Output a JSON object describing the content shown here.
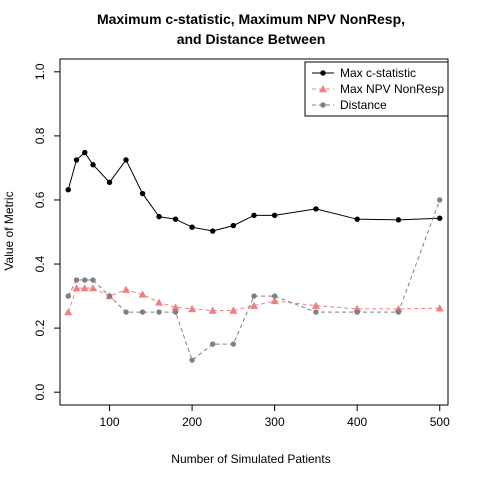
{
  "chart_data": {
    "type": "line",
    "title_lines": [
      "Maximum c-statistic, Maximum NPV NonResp,",
      "and Distance Between"
    ],
    "xlabel": "Number of Simulated Patients",
    "ylabel": "Value of Metric",
    "xlim": [
      40,
      510
    ],
    "ylim": [
      -0.04,
      1.04
    ],
    "x_ticks": [
      100,
      200,
      300,
      400,
      500
    ],
    "x_tick_labels": [
      "100",
      "200",
      "300",
      "400",
      "500"
    ],
    "y_ticks": [
      0.0,
      0.2,
      0.4,
      0.6,
      0.8,
      1.0
    ],
    "y_tick_labels": [
      "0.0",
      "0.2",
      "0.4",
      "0.6",
      "0.8",
      "1.0"
    ],
    "legend_position": "top-right",
    "x": [
      50,
      60,
      70,
      80,
      100,
      120,
      140,
      160,
      180,
      200,
      225,
      250,
      275,
      300,
      350,
      400,
      450,
      500
    ],
    "series": [
      {
        "name": "Max c-statistic",
        "color": "#000000",
        "marker": "circle",
        "dash": "solid",
        "values": [
          0.632,
          0.725,
          0.748,
          0.71,
          0.655,
          0.725,
          0.62,
          0.548,
          0.54,
          0.515,
          0.503,
          0.52,
          0.552,
          0.552,
          0.572,
          0.54,
          0.538,
          0.543
        ]
      },
      {
        "name": "Max NPV NonResp",
        "color": "#f08080",
        "marker": "triangle",
        "dash": "dashed",
        "values": [
          0.25,
          0.325,
          0.325,
          0.325,
          0.3,
          0.32,
          0.305,
          0.28,
          0.265,
          0.26,
          0.255,
          0.255,
          0.27,
          0.285,
          0.27,
          0.26,
          0.26,
          0.262
        ]
      },
      {
        "name": "Distance",
        "color": "#808080",
        "marker": "circle",
        "dash": "dashed",
        "values": [
          0.3,
          0.35,
          0.35,
          0.35,
          0.3,
          0.25,
          0.25,
          0.25,
          0.25,
          0.1,
          0.15,
          0.15,
          0.3,
          0.3,
          0.25,
          0.25,
          0.25,
          0.6
        ]
      }
    ]
  }
}
